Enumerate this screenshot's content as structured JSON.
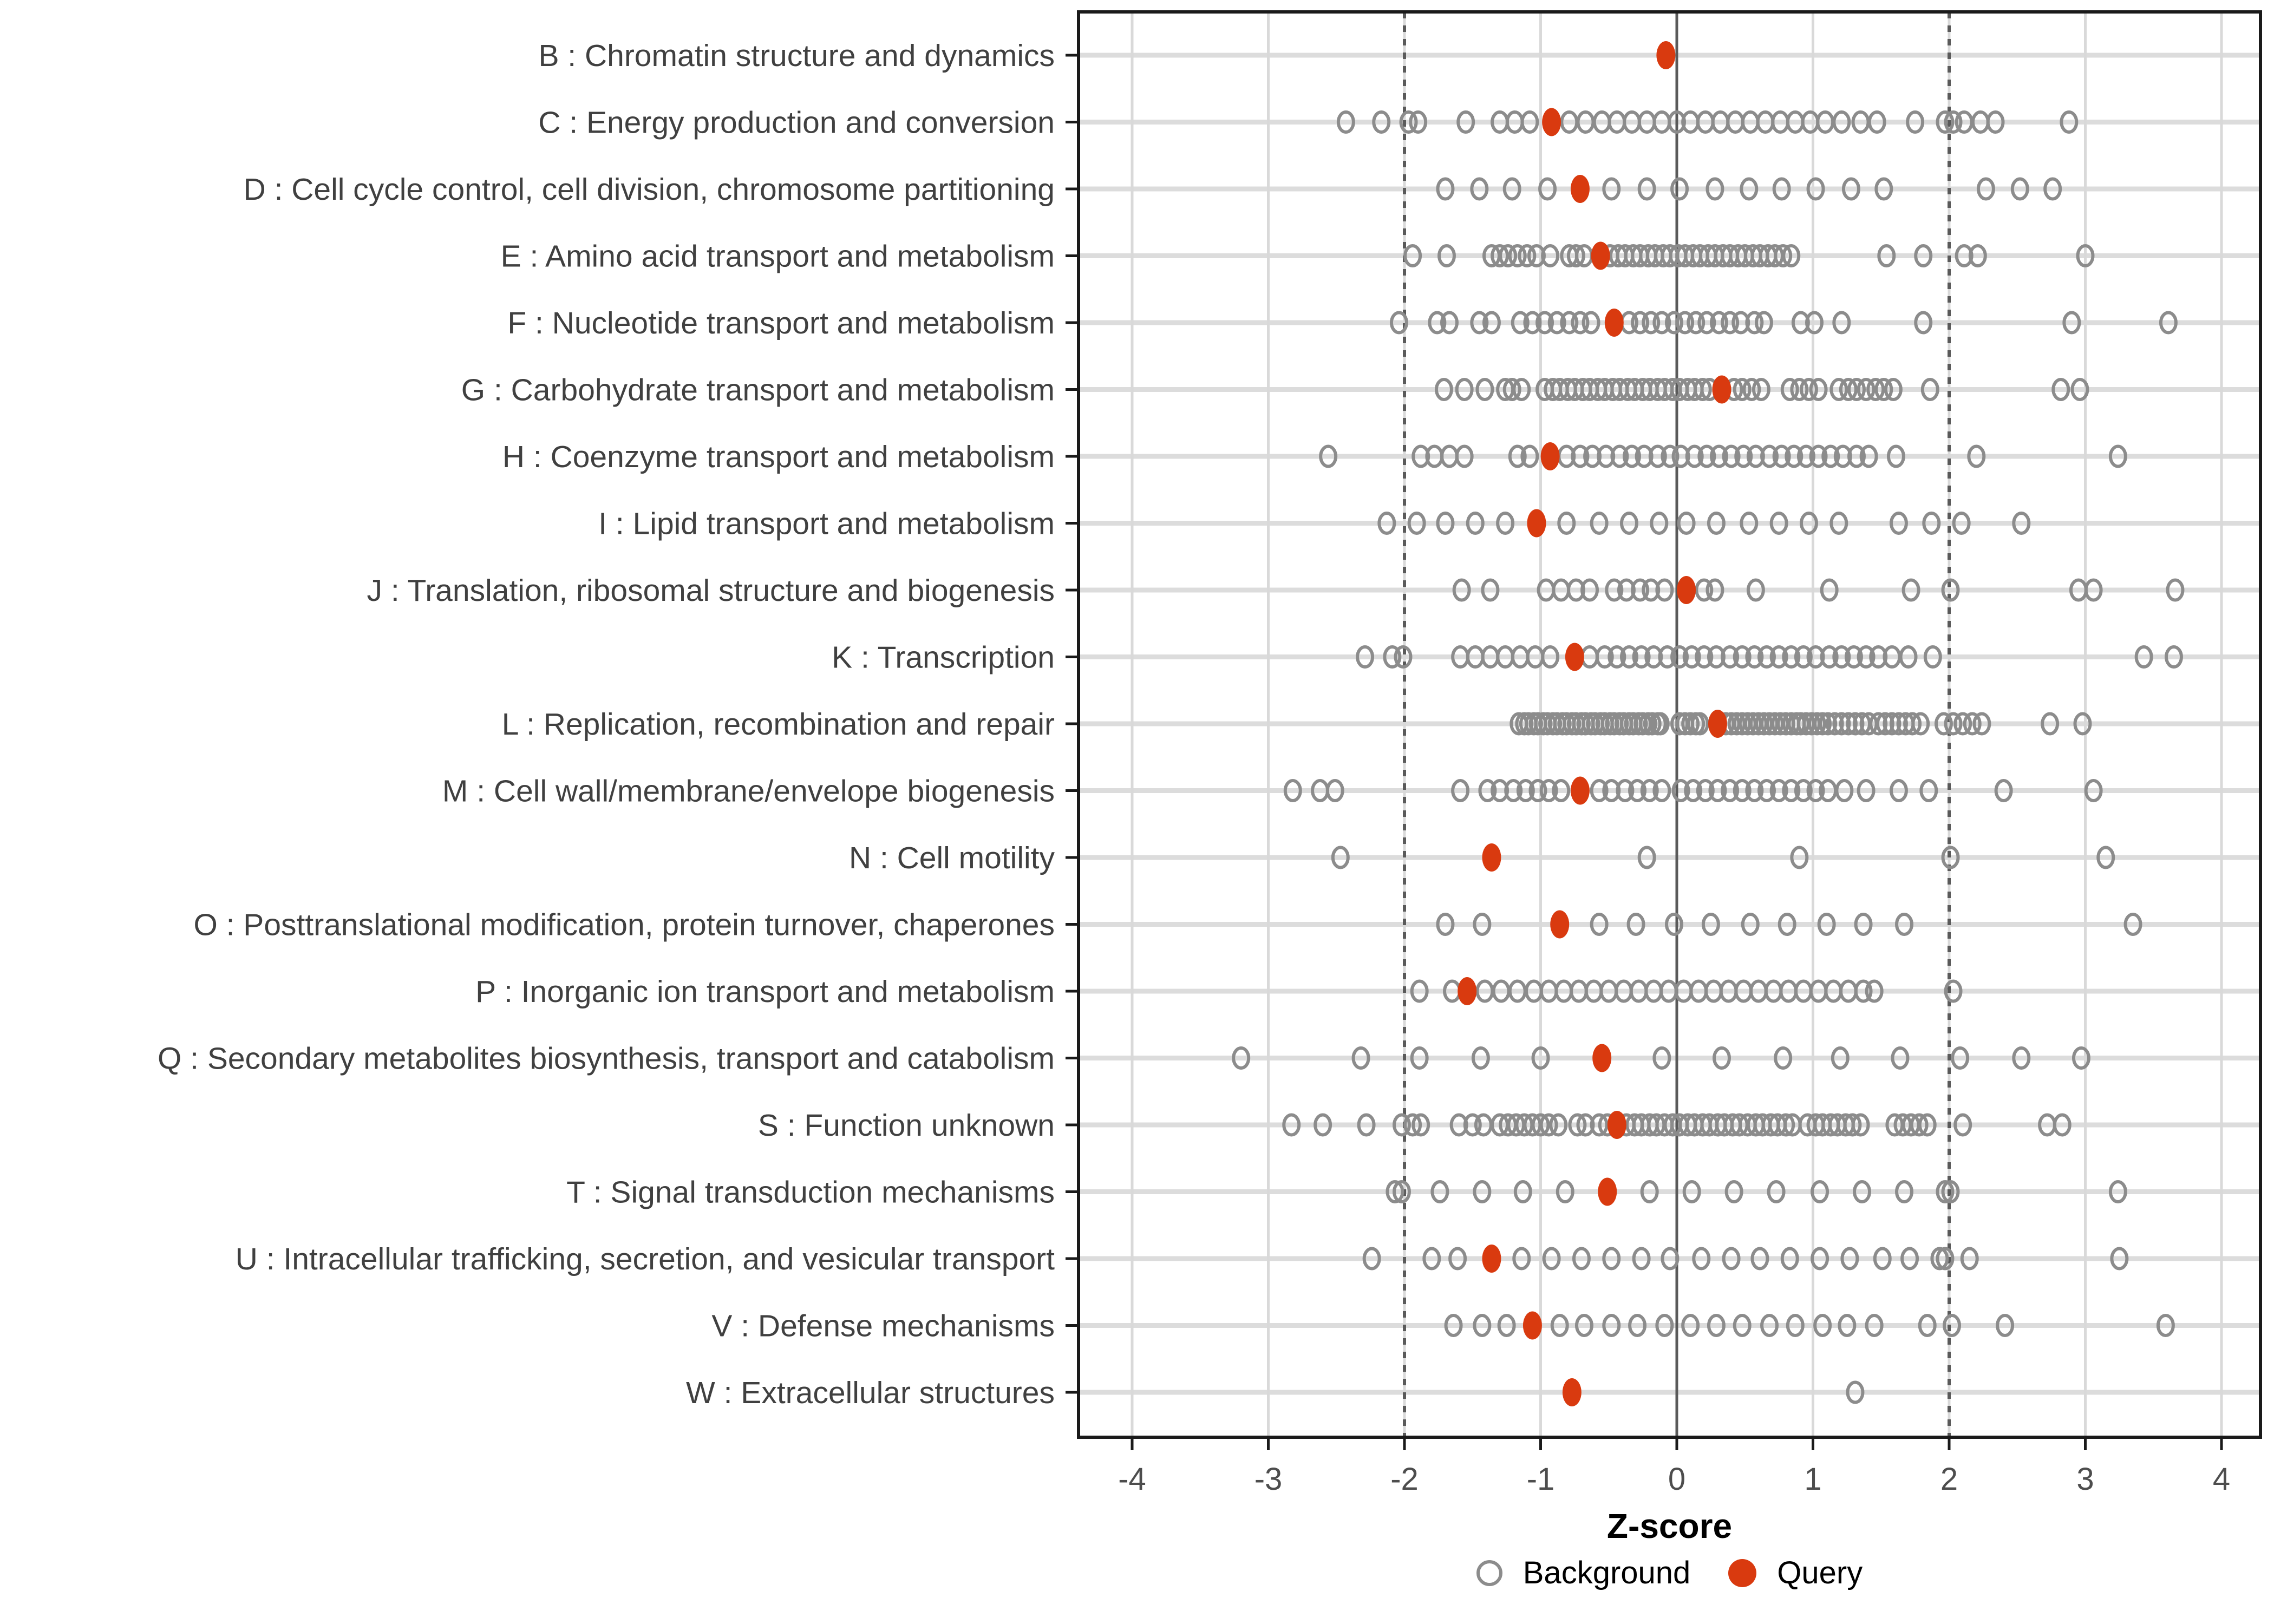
{
  "axis": {
    "title": "Z-score",
    "ticks": [
      -4,
      -3,
      -2,
      -1,
      0,
      1,
      2,
      3,
      4
    ],
    "tick_labels": [
      "-4",
      "-3",
      "-2",
      "-1",
      "0",
      "1",
      "2",
      "3",
      "4"
    ]
  },
  "legend": {
    "items": [
      {
        "label": "Background",
        "marker": "open-circle",
        "color": "#8c8c8c"
      },
      {
        "label": "Query",
        "marker": "filled-circle",
        "color": "#D93A0F"
      }
    ]
  },
  "style": {
    "query_color": "#D93A0F",
    "background_stroke": "#8c8c8c",
    "grid_light": "#D9D9D9",
    "row_line": "#DCDCDC",
    "ref_line": "#5a5a5a",
    "panel_border": "#1a1a1a",
    "tick_color": "#1a1a1a",
    "label_color": "#404040",
    "tick_label_color": "#4d4d4d"
  },
  "chart_data": {
    "type": "scatter",
    "orientation": "horizontal-strip",
    "title": "",
    "xlabel": "Z-score",
    "ylabel": "",
    "xlim": [
      -4.4,
      4.3
    ],
    "x_ticks": [
      -4,
      -3,
      -2,
      -1,
      0,
      1,
      2,
      3,
      4
    ],
    "reference_lines": {
      "solid_x": [
        0
      ],
      "dashed_x": [
        -2,
        2
      ]
    },
    "legend_position": "bottom",
    "series_names": [
      "Background",
      "Query"
    ],
    "rows": [
      {
        "label": "B : Chromatin structure and dynamics",
        "query": -0.08,
        "background": []
      },
      {
        "label": "C : Energy production and conversion",
        "query": -0.92,
        "background": [
          -2.43,
          -2.17,
          -1.97,
          -1.9,
          -1.55,
          -1.3,
          -1.19,
          -1.08,
          -0.79,
          -0.67,
          -0.55,
          -0.44,
          -0.33,
          -0.22,
          -0.11,
          0.0,
          0.1,
          0.21,
          0.32,
          0.43,
          0.54,
          0.65,
          0.76,
          0.87,
          0.98,
          1.09,
          1.21,
          1.35,
          1.47,
          1.75,
          1.97,
          2.03,
          2.11,
          2.23,
          2.34,
          2.88
        ]
      },
      {
        "label": "D : Cell cycle control, cell division, chromosome partitioning",
        "query": -0.71,
        "background": [
          -1.7,
          -1.45,
          -1.21,
          -0.95,
          -0.48,
          -0.22,
          0.02,
          0.28,
          0.53,
          0.77,
          1.02,
          1.28,
          1.52,
          2.27,
          2.52,
          2.76
        ]
      },
      {
        "label": "E : Amino acid transport and metabolism",
        "query": -0.56,
        "background": [
          -1.94,
          -1.69,
          -1.36,
          -1.3,
          -1.24,
          -1.17,
          -1.1,
          -1.03,
          -0.93,
          -0.79,
          -0.74,
          -0.68,
          -0.49,
          -0.43,
          -0.38,
          -0.32,
          -0.27,
          -0.21,
          -0.16,
          -0.1,
          -0.05,
          0.01,
          0.06,
          0.12,
          0.17,
          0.23,
          0.28,
          0.34,
          0.39,
          0.45,
          0.5,
          0.56,
          0.61,
          0.67,
          0.72,
          0.78,
          0.84,
          1.54,
          1.81,
          2.11,
          2.21,
          3.0
        ]
      },
      {
        "label": "F : Nucleotide transport and metabolism",
        "query": -0.46,
        "background": [
          -2.04,
          -1.76,
          -1.67,
          -1.45,
          -1.36,
          -1.15,
          -1.06,
          -0.97,
          -0.88,
          -0.79,
          -0.71,
          -0.63,
          -0.35,
          -0.27,
          -0.19,
          -0.11,
          -0.02,
          0.06,
          0.14,
          0.22,
          0.31,
          0.39,
          0.47,
          0.57,
          0.64,
          0.91,
          1.01,
          1.21,
          1.81,
          2.9,
          3.61
        ]
      },
      {
        "label": "G : Carbohydrate transport and metabolism",
        "query": 0.33,
        "background": [
          -1.71,
          -1.56,
          -1.41,
          -1.26,
          -1.21,
          -1.14,
          -0.97,
          -0.91,
          -0.86,
          -0.8,
          -0.75,
          -0.69,
          -0.64,
          -0.58,
          -0.53,
          -0.47,
          -0.42,
          -0.36,
          -0.31,
          -0.25,
          -0.2,
          -0.14,
          -0.09,
          -0.03,
          0.02,
          0.08,
          0.13,
          0.19,
          0.24,
          0.42,
          0.48,
          0.55,
          0.62,
          0.83,
          0.9,
          0.97,
          1.04,
          1.19,
          1.26,
          1.32,
          1.39,
          1.46,
          1.52,
          1.59,
          1.86,
          2.82,
          2.96
        ]
      },
      {
        "label": "H : Coenzyme transport and metabolism",
        "query": -0.93,
        "background": [
          -2.56,
          -1.88,
          -1.78,
          -1.67,
          -1.56,
          -1.17,
          -1.08,
          -0.81,
          -0.71,
          -0.62,
          -0.52,
          -0.42,
          -0.33,
          -0.24,
          -0.14,
          -0.05,
          0.03,
          0.13,
          0.22,
          0.31,
          0.4,
          0.49,
          0.58,
          0.68,
          0.77,
          0.86,
          0.95,
          1.04,
          1.13,
          1.22,
          1.32,
          1.41,
          1.61,
          2.2,
          3.24
        ]
      },
      {
        "label": "I : Lipid transport and metabolism",
        "query": -1.03,
        "background": [
          -2.13,
          -1.91,
          -1.7,
          -1.48,
          -1.26,
          -0.81,
          -0.57,
          -0.35,
          -0.13,
          0.07,
          0.29,
          0.53,
          0.75,
          0.97,
          1.19,
          1.63,
          1.87,
          2.09,
          2.53
        ]
      },
      {
        "label": "J : Translation, ribosomal structure and biogenesis",
        "query": 0.07,
        "background": [
          -1.58,
          -1.37,
          -0.96,
          -0.85,
          -0.74,
          -0.64,
          -0.46,
          -0.37,
          -0.27,
          -0.19,
          -0.09,
          0.2,
          0.28,
          0.58,
          1.12,
          1.72,
          2.01,
          2.95,
          3.06,
          3.66
        ]
      },
      {
        "label": "K : Transcription",
        "query": -0.75,
        "background": [
          -2.29,
          -2.09,
          -2.01,
          -1.59,
          -1.48,
          -1.37,
          -1.26,
          -1.15,
          -1.04,
          -0.93,
          -0.64,
          -0.53,
          -0.44,
          -0.35,
          -0.26,
          -0.17,
          -0.07,
          0.02,
          0.11,
          0.2,
          0.29,
          0.39,
          0.48,
          0.57,
          0.66,
          0.75,
          0.84,
          0.93,
          1.02,
          1.12,
          1.21,
          1.3,
          1.39,
          1.48,
          1.58,
          1.7,
          1.88,
          3.43,
          3.65
        ]
      },
      {
        "label": "L : Replication, recombination and repair",
        "query": 0.3,
        "background": [
          -1.16,
          -1.12,
          -1.09,
          -1.05,
          -1.02,
          -0.98,
          -0.95,
          -0.91,
          -0.88,
          -0.84,
          -0.81,
          -0.77,
          -0.74,
          -0.7,
          -0.67,
          -0.63,
          -0.6,
          -0.56,
          -0.53,
          -0.49,
          -0.46,
          -0.42,
          -0.39,
          -0.35,
          -0.32,
          -0.28,
          -0.25,
          -0.21,
          -0.18,
          -0.14,
          -0.12,
          0.02,
          0.06,
          0.1,
          0.14,
          0.17,
          0.36,
          0.4,
          0.44,
          0.48,
          0.52,
          0.56,
          0.6,
          0.64,
          0.68,
          0.72,
          0.76,
          0.8,
          0.84,
          0.88,
          0.91,
          0.95,
          0.99,
          1.03,
          1.07,
          1.11,
          1.16,
          1.21,
          1.26,
          1.31,
          1.36,
          1.41,
          1.48,
          1.53,
          1.58,
          1.63,
          1.68,
          1.73,
          1.79,
          1.96,
          2.03,
          2.1,
          2.17,
          2.24,
          2.74,
          2.98
        ]
      },
      {
        "label": "M : Cell wall/membrane/envelope biogenesis",
        "query": -0.71,
        "background": [
          -2.82,
          -2.62,
          -2.51,
          -1.59,
          -1.39,
          -1.3,
          -1.2,
          -1.11,
          -1.02,
          -0.94,
          -0.85,
          -0.57,
          -0.48,
          -0.38,
          -0.29,
          -0.2,
          -0.11,
          0.03,
          0.12,
          0.21,
          0.3,
          0.39,
          0.48,
          0.57,
          0.66,
          0.75,
          0.84,
          0.93,
          1.02,
          1.11,
          1.23,
          1.39,
          1.63,
          1.85,
          2.4,
          3.06
        ]
      },
      {
        "label": "N : Cell motility",
        "query": -1.36,
        "background": [
          -2.47,
          -0.22,
          0.9,
          2.01,
          3.15
        ]
      },
      {
        "label": "O : Posttranslational modification, protein turnover, chaperones",
        "query": -0.86,
        "background": [
          -1.7,
          -1.43,
          -0.57,
          -0.3,
          -0.02,
          0.25,
          0.54,
          0.81,
          1.1,
          1.37,
          1.67,
          3.35
        ]
      },
      {
        "label": "P : Inorganic ion transport and metabolism",
        "query": -1.54,
        "background": [
          -1.89,
          -1.65,
          -1.41,
          -1.29,
          -1.17,
          -1.05,
          -0.94,
          -0.83,
          -0.72,
          -0.61,
          -0.5,
          -0.39,
          -0.28,
          -0.17,
          -0.06,
          0.05,
          0.16,
          0.27,
          0.38,
          0.49,
          0.6,
          0.71,
          0.82,
          0.93,
          1.04,
          1.15,
          1.26,
          1.37,
          1.45,
          2.03
        ]
      },
      {
        "label": "Q : Secondary metabolites biosynthesis, transport and catabolism",
        "query": -0.55,
        "background": [
          -3.2,
          -2.32,
          -1.89,
          -1.44,
          -1.0,
          -0.11,
          0.33,
          0.78,
          1.2,
          1.64,
          2.08,
          2.53,
          2.97
        ]
      },
      {
        "label": "S : Function unknown",
        "query": -0.44,
        "background": [
          -2.83,
          -2.6,
          -2.28,
          -2.02,
          -1.94,
          -1.88,
          -1.6,
          -1.5,
          -1.42,
          -1.3,
          -1.24,
          -1.18,
          -1.12,
          -1.06,
          -1.0,
          -0.94,
          -0.87,
          -0.73,
          -0.67,
          -0.57,
          -0.51,
          -0.37,
          -0.31,
          -0.26,
          -0.2,
          -0.15,
          -0.09,
          -0.03,
          0.02,
          0.08,
          0.13,
          0.19,
          0.24,
          0.3,
          0.35,
          0.41,
          0.46,
          0.52,
          0.58,
          0.63,
          0.69,
          0.74,
          0.8,
          0.85,
          0.96,
          1.02,
          1.07,
          1.13,
          1.18,
          1.24,
          1.29,
          1.35,
          1.6,
          1.66,
          1.72,
          1.78,
          1.84,
          2.1,
          2.72,
          2.83
        ]
      },
      {
        "label": "T : Signal transduction mechanisms",
        "query": -0.51,
        "background": [
          -2.07,
          -2.02,
          -1.74,
          -1.43,
          -1.13,
          -0.82,
          -0.2,
          0.11,
          0.42,
          0.73,
          1.05,
          1.36,
          1.67,
          1.97,
          2.01,
          3.24
        ]
      },
      {
        "label": "U : Intracellular trafficking, secretion, and vesicular transport",
        "query": -1.36,
        "background": [
          -2.24,
          -1.8,
          -1.61,
          -1.14,
          -0.92,
          -0.7,
          -0.48,
          -0.26,
          -0.05,
          0.18,
          0.4,
          0.61,
          0.83,
          1.05,
          1.27,
          1.51,
          1.71,
          1.93,
          1.97,
          2.15,
          3.25
        ]
      },
      {
        "label": "V : Defense mechanisms",
        "query": -1.06,
        "background": [
          -1.64,
          -1.43,
          -1.25,
          -0.86,
          -0.68,
          -0.48,
          -0.29,
          -0.09,
          0.1,
          0.29,
          0.48,
          0.68,
          0.87,
          1.07,
          1.25,
          1.45,
          1.84,
          2.02,
          2.41,
          3.59
        ]
      },
      {
        "label": "W : Extracellular structures",
        "query": -0.77,
        "background": [
          1.31
        ]
      }
    ]
  }
}
